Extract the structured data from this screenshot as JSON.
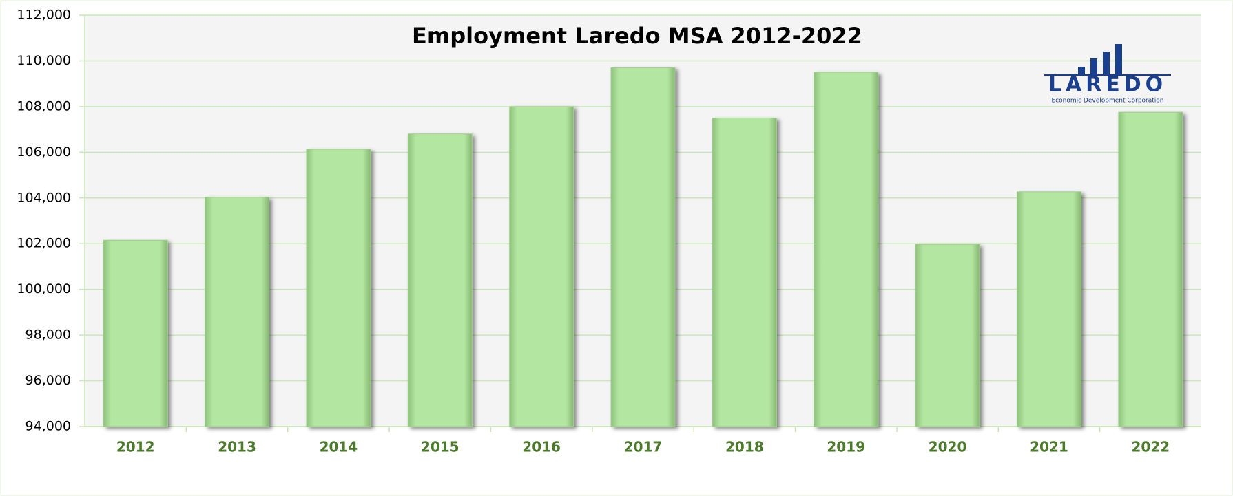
{
  "chart_data": {
    "type": "bar",
    "title": "Employment Laredo MSA 2012-2022",
    "categories": [
      "2012",
      "2013",
      "2014",
      "2015",
      "2016",
      "2017",
      "2018",
      "2019",
      "2020",
      "2021",
      "2022"
    ],
    "values": [
      102150,
      104030,
      106130,
      106800,
      108000,
      109700,
      107500,
      109500,
      101970,
      104270,
      107750
    ],
    "color": "#b3e6a0",
    "ylim": [
      94000,
      112000
    ],
    "yticks": [
      {
        "value": 94000,
        "label": "94,000"
      },
      {
        "value": 96000,
        "label": "96,000"
      },
      {
        "value": 98000,
        "label": "98,000"
      },
      {
        "value": 100000,
        "label": "100,000"
      },
      {
        "value": 102000,
        "label": "102,000"
      },
      {
        "value": 104000,
        "label": "104,000"
      },
      {
        "value": 106000,
        "label": "106,000"
      },
      {
        "value": 108000,
        "label": "108,000"
      },
      {
        "value": 110000,
        "label": "110,000"
      },
      {
        "value": 112000,
        "label": "112,000"
      }
    ],
    "grid": true,
    "logo": {
      "name": "LAREDO",
      "tagline": "Economic Development Corporation"
    }
  }
}
